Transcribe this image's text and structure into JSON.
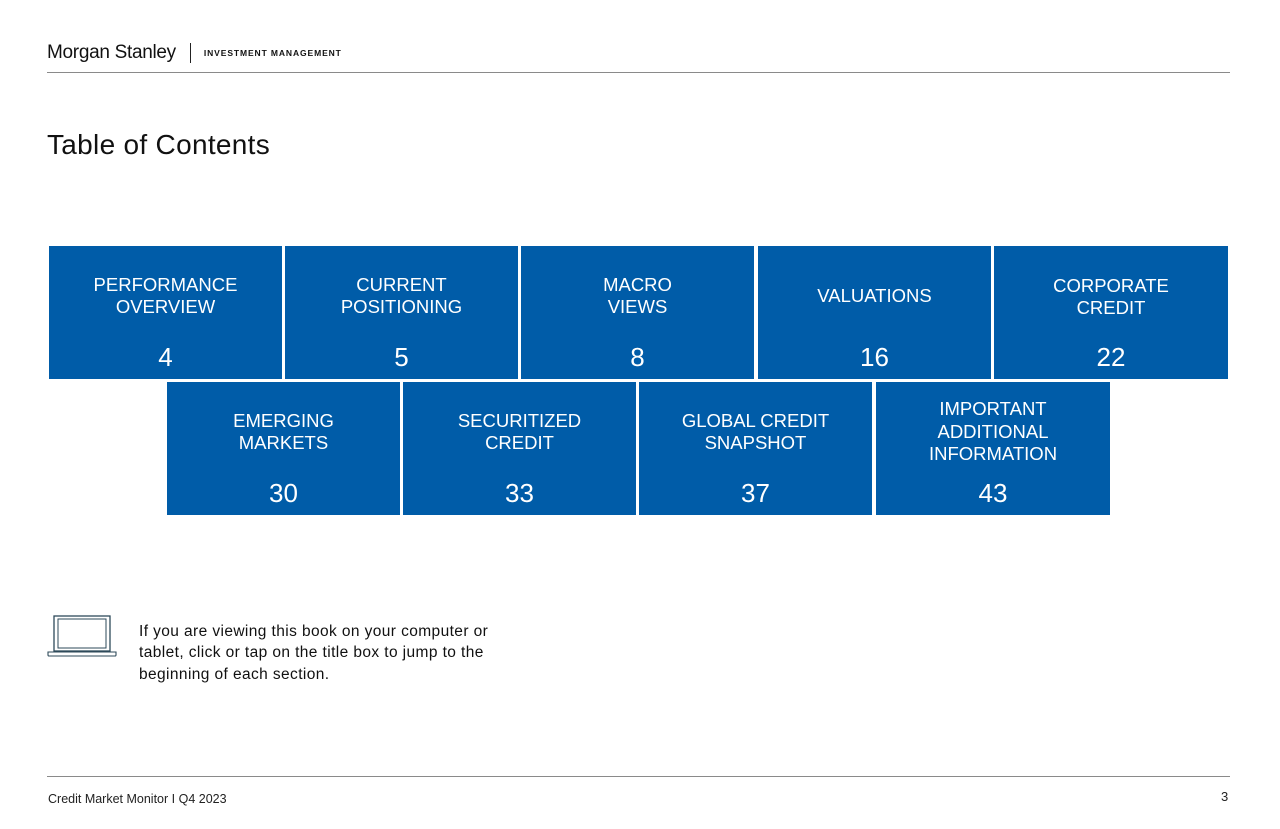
{
  "header": {
    "brand": "Morgan Stanley",
    "subbrand": "INVESTMENT MANAGEMENT"
  },
  "page_title": "Table of Contents",
  "sections": [
    {
      "label": "PERFORMANCE\nOVERVIEW",
      "page": "4"
    },
    {
      "label": "CURRENT\nPOSITIONING",
      "page": "5"
    },
    {
      "label": "MACRO\nVIEWS",
      "page": "8"
    },
    {
      "label": "VALUATIONS",
      "page": "16"
    },
    {
      "label": "CORPORATE\nCREDIT",
      "page": "22"
    },
    {
      "label": "EMERGING\nMARKETS",
      "page": "30"
    },
    {
      "label": "SECURITIZED\nCREDIT",
      "page": "33"
    },
    {
      "label": "GLOBAL CREDIT\nSNAPSHOT",
      "page": "37"
    },
    {
      "label": "IMPORTANT\nADDITIONAL\nINFORMATION",
      "page": "43"
    }
  ],
  "note": {
    "icon": "laptop-icon",
    "text": "If you are viewing this book on your computer or tablet, click or tap on the title box to jump to the beginning of each section."
  },
  "footer": {
    "publication": "Credit Market Monitor I Q4 2023",
    "page_number": "3"
  },
  "colors": {
    "tile_background": "#005ca8",
    "tile_text": "#ffffff",
    "rule": "#8a8a8a"
  }
}
